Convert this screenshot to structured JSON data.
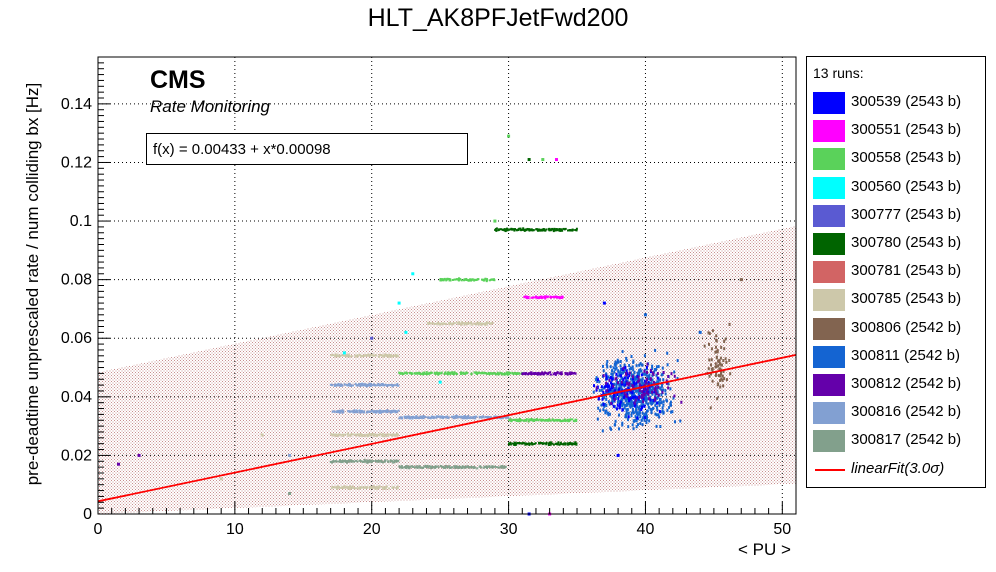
{
  "chart_data": {
    "type": "scatter",
    "title": "HLT_AK8PFJetFwd200",
    "xlabel": "< PU >",
    "ylabel": "pre-deadtime unprescaled rate / num colliding bx [Hz]",
    "xlim": [
      0,
      51
    ],
    "ylim": [
      0,
      0.156
    ],
    "x_ticks": [
      0,
      10,
      20,
      30,
      40,
      50
    ],
    "y_ticks": [
      0,
      0.02,
      0.04,
      0.06,
      0.08,
      0.1,
      0.12,
      0.14
    ],
    "x_tick_labels": [
      "0",
      "10",
      "20",
      "30",
      "40",
      "50"
    ],
    "y_tick_labels": [
      "0",
      "0.02",
      "0.04",
      "0.06",
      "0.08",
      "0.1",
      "0.12",
      "0.14"
    ],
    "grid": true,
    "legend_position": "right",
    "legend_header": "13 runs:",
    "series": [
      {
        "name": "300539 (2543 b)",
        "color": "#0000ff"
      },
      {
        "name": "300551 (2543 b)",
        "color": "#ff00ff"
      },
      {
        "name": "300558 (2543 b)",
        "color": "#5ad25a"
      },
      {
        "name": "300560 (2543 b)",
        "color": "#00ffff"
      },
      {
        "name": "300777 (2543 b)",
        "color": "#5a5ad2"
      },
      {
        "name": "300780 (2543 b)",
        "color": "#006400"
      },
      {
        "name": "300781 (2543 b)",
        "color": "#d26464"
      },
      {
        "name": "300785 (2543 b)",
        "color": "#cdc8aa"
      },
      {
        "name": "300806 (2542 b)",
        "color": "#826450"
      },
      {
        "name": "300811 (2542 b)",
        "color": "#1464d2"
      },
      {
        "name": "300812 (2542 b)",
        "color": "#6400aa"
      },
      {
        "name": "300816 (2542 b)",
        "color": "#82a0d2"
      },
      {
        "name": "300817 (2542 b)",
        "color": "#82a08c"
      }
    ],
    "fit": {
      "name": "linearFit(3.0σ)",
      "label": "f(x) = 0.00433 + x*0.00098",
      "intercept": 0.00433,
      "slope": 0.00098,
      "band_sigma": 3.0,
      "band_halfwidth": 0.044,
      "color": "#ff0000",
      "band_color": "#d2a0a0"
    },
    "bands": [
      {
        "x": [
          17,
          22
        ],
        "y": 0.009,
        "color": "#cdc8aa"
      },
      {
        "x": [
          17,
          22
        ],
        "y": 0.018,
        "color": "#82a08c"
      },
      {
        "x": [
          17,
          22
        ],
        "y": 0.027,
        "color": "#cdc8aa"
      },
      {
        "x": [
          17,
          22
        ],
        "y": 0.035,
        "color": "#82a0d2"
      },
      {
        "x": [
          17,
          22
        ],
        "y": 0.044,
        "color": "#82a0d2"
      },
      {
        "x": [
          17,
          22
        ],
        "y": 0.054,
        "color": "#cdc8aa"
      },
      {
        "x": [
          22,
          30
        ],
        "y": 0.016,
        "color": "#82a08c"
      },
      {
        "x": [
          22,
          30
        ],
        "y": 0.033,
        "color": "#82a0d2"
      },
      {
        "x": [
          22,
          31
        ],
        "y": 0.048,
        "color": "#5ad25a"
      },
      {
        "x": [
          24,
          29
        ],
        "y": 0.065,
        "color": "#cdc8aa"
      },
      {
        "x": [
          25,
          29
        ],
        "y": 0.08,
        "color": "#5ad25a"
      },
      {
        "x": [
          30,
          35
        ],
        "y": 0.024,
        "color": "#006400"
      },
      {
        "x": [
          30,
          35
        ],
        "y": 0.032,
        "color": "#5ad25a"
      },
      {
        "x": [
          31,
          35
        ],
        "y": 0.048,
        "color": "#6400aa"
      },
      {
        "x": [
          31,
          34
        ],
        "y": 0.074,
        "color": "#ff00ff"
      },
      {
        "x": [
          29,
          35
        ],
        "y": 0.097,
        "color": "#006400"
      }
    ],
    "clusters": [
      {
        "x": [
          35.5,
          43
        ],
        "y": [
          0.025,
          0.058
        ],
        "count": 620,
        "color": "#1464d2"
      },
      {
        "x": [
          35,
          42
        ],
        "y": [
          0.03,
          0.055
        ],
        "count": 140,
        "color": "#0000ff"
      },
      {
        "x": [
          36,
          43
        ],
        "y": [
          0.035,
          0.052
        ],
        "count": 90,
        "color": "#6400aa"
      },
      {
        "x": [
          44,
          46.5
        ],
        "y": [
          0.035,
          0.068
        ],
        "count": 70,
        "color": "#826450"
      }
    ],
    "outliers": [
      {
        "x": 30,
        "y": 0.129,
        "color": "#5ad25a"
      },
      {
        "x": 31.5,
        "y": 0.121,
        "color": "#006400"
      },
      {
        "x": 32.5,
        "y": 0.121,
        "color": "#5ad25a"
      },
      {
        "x": 33.5,
        "y": 0.121,
        "color": "#ff00ff"
      },
      {
        "x": 29,
        "y": 0.1,
        "color": "#5ad25a"
      },
      {
        "x": 23,
        "y": 0.082,
        "color": "#00ffff"
      },
      {
        "x": 22,
        "y": 0.072,
        "color": "#00ffff"
      },
      {
        "x": 22.5,
        "y": 0.062,
        "color": "#00ffff"
      },
      {
        "x": 20,
        "y": 0.06,
        "color": "#5a5ad2"
      },
      {
        "x": 18,
        "y": 0.055,
        "color": "#00ffff"
      },
      {
        "x": 25,
        "y": 0.045,
        "color": "#00ffff"
      },
      {
        "x": 12,
        "y": 0.027,
        "color": "#cdc8aa"
      },
      {
        "x": 14,
        "y": 0.02,
        "color": "#82a0d2"
      },
      {
        "x": 9,
        "y": 0.012,
        "color": "#cdc8aa"
      },
      {
        "x": 3,
        "y": 0.02,
        "color": "#6400aa"
      },
      {
        "x": 1.5,
        "y": 0.017,
        "color": "#6400aa"
      },
      {
        "x": 14,
        "y": 0.007,
        "color": "#82a08c"
      },
      {
        "x": 47,
        "y": 0.08,
        "color": "#826450"
      },
      {
        "x": 40,
        "y": 0.068,
        "color": "#1464d2"
      },
      {
        "x": 37,
        "y": 0.072,
        "color": "#0000ff"
      },
      {
        "x": 44,
        "y": 0.062,
        "color": "#1464d2"
      },
      {
        "x": 38,
        "y": 0.02,
        "color": "#0000ff"
      },
      {
        "x": 31.5,
        "y": 0.0,
        "color": "#0000ff"
      },
      {
        "x": 33,
        "y": 0.0,
        "color": "#ff00ff"
      }
    ]
  },
  "annotations": {
    "experiment": "CMS",
    "subtitle": "Rate Monitoring"
  }
}
